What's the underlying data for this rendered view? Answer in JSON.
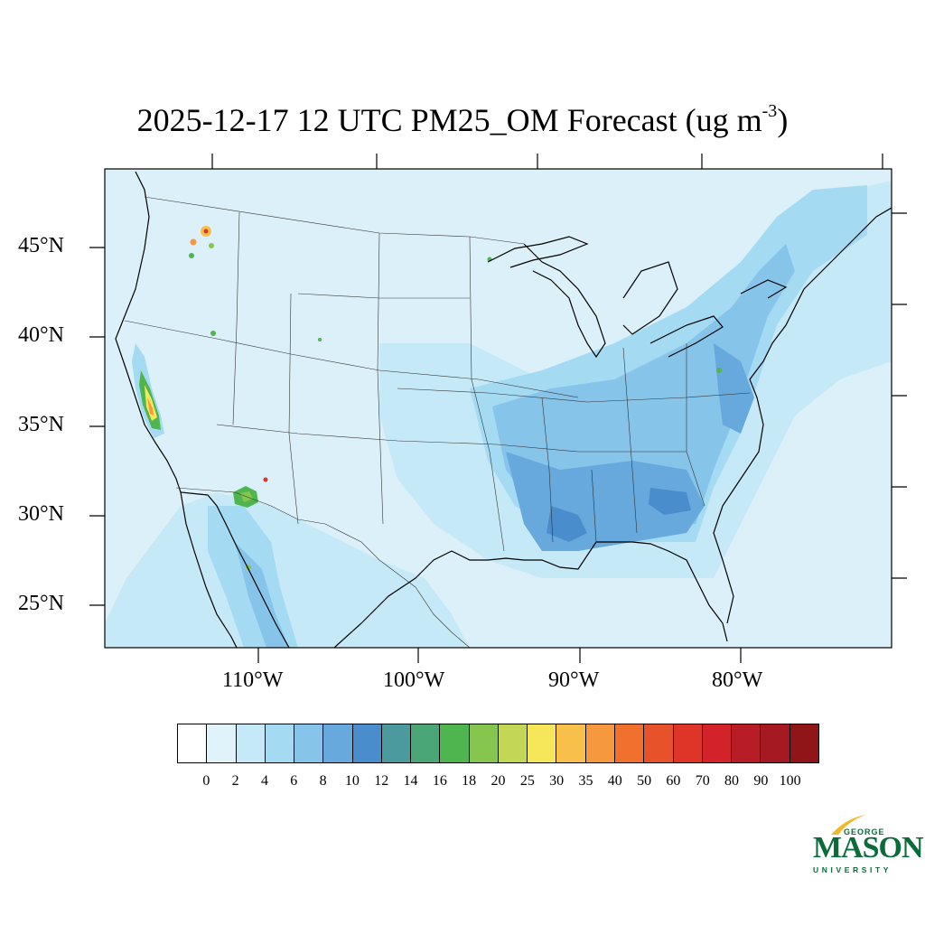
{
  "title": {
    "main": "2025-12-17 12 UTC PM25_OM Forecast (ug m",
    "superscript": "-3",
    "close": ")"
  },
  "map": {
    "latitude_labels": [
      "45°N",
      "40°N",
      "35°N",
      "30°N",
      "25°N"
    ],
    "longitude_labels": [
      "110°W",
      "100°W",
      "90°W",
      "80°W"
    ],
    "ocean_color": "#dcf0fa",
    "boundary_color": "#000000"
  },
  "colorbar": {
    "labels": [
      "0",
      "2",
      "4",
      "6",
      "8",
      "10",
      "12",
      "14",
      "16",
      "18",
      "20",
      "25",
      "30",
      "35",
      "40",
      "50",
      "60",
      "70",
      "80",
      "90",
      "100"
    ],
    "colors": [
      "#ffffff",
      "#e0f3fb",
      "#c6e9f8",
      "#a5daf3",
      "#87c4ea",
      "#67a9dc",
      "#4a8dcc",
      "#4b9b9e",
      "#4aa677",
      "#4fb54e",
      "#86c64e",
      "#c4d656",
      "#f6e75a",
      "#f8c04a",
      "#f6983e",
      "#f2702e",
      "#e8522b",
      "#de3528",
      "#d32229",
      "#b81c26",
      "#a41922",
      "#8f1519"
    ]
  },
  "logo": {
    "top_text": "GEORGE",
    "name": "MASON",
    "bottom_text": "UNIVERSITY"
  }
}
